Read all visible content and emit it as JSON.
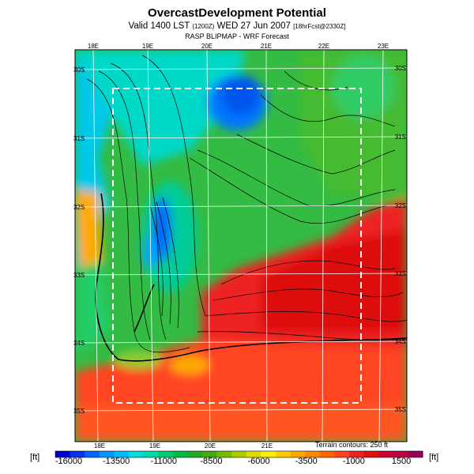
{
  "header": {
    "title": "OvercastDevelopment Potential",
    "subtitle_main": "Valid 1400 LST",
    "subtitle_small1": "(1200Z)",
    "subtitle_date": "WED 27 Jun 2007",
    "subtitle_small2": "[18hrFcst@2330Z]",
    "source": "RASP BLIPMAP - WRF Forecast"
  },
  "map": {
    "lon_labels_top": [
      "18E",
      "19E",
      "20E",
      "21E",
      "22E",
      "23E"
    ],
    "lon_labels_bottom": [
      "18E",
      "19E",
      "20E",
      "21E"
    ],
    "lat_labels_left": [
      "30S",
      "31S",
      "32S",
      "33S",
      "34S",
      "35S"
    ],
    "lat_labels_right": [
      "30S",
      "31S",
      "32S",
      "33S",
      "34S",
      "35S"
    ],
    "terrain_note": "Terrain contours: 250 ft"
  },
  "colorbar": {
    "unit": "[ft]",
    "tick_labels": [
      "-16000",
      "-13500",
      "-11000",
      "-8500",
      "-6000",
      "-3500",
      "-1000",
      "1500"
    ],
    "range": [
      -16000,
      1500
    ],
    "colors": [
      "#0000cc",
      "#0033ee",
      "#0066ff",
      "#0099ff",
      "#00bbff",
      "#00dddd",
      "#00d9aa",
      "#00cc77",
      "#00bb44",
      "#22aa22",
      "#44aa11",
      "#77bb00",
      "#aacc00",
      "#dddd00",
      "#ffee00",
      "#ffcc00",
      "#ffaa00",
      "#ff8800",
      "#ff6600",
      "#ff4422",
      "#ee2222",
      "#dd1111",
      "#cc0033",
      "#bb0044",
      "#990055"
    ]
  }
}
